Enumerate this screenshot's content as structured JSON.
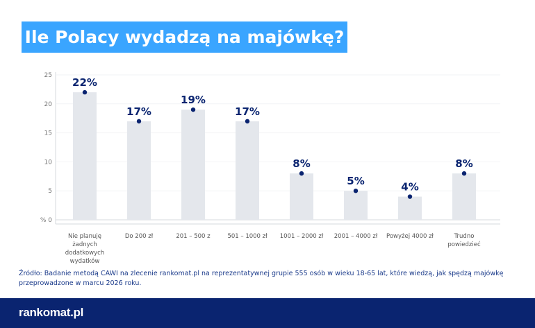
{
  "title": "Ile Polacy wydadzą na majówkę?",
  "chart_data": {
    "type": "bar",
    "title": "Ile Polacy wydadzą na majówkę?",
    "categories": [
      "Nie planuję żadnych dodatkowych wydatków",
      "Do 200 zł",
      "201 – 500 z",
      "501 – 1000 zł",
      "1001 – 2000 zł",
      "2001 – 4000 zł",
      "Powyżej 4000 zł",
      "Trudno powiedzieć"
    ],
    "category_lines": [
      [
        "Nie planuję",
        "żadnych",
        "dodatkowych",
        "wydatków"
      ],
      [
        "Do 200 zł"
      ],
      [
        "201 – 500 z"
      ],
      [
        "501 – 1000 zł"
      ],
      [
        "1001 – 2000 zł"
      ],
      [
        "2001 – 4000 zł"
      ],
      [
        "Powyżej 4000 zł"
      ],
      [
        "Trudno",
        "powiedzieć"
      ]
    ],
    "values": [
      22,
      17,
      19,
      17,
      8,
      5,
      4,
      8
    ],
    "data_labels": [
      "22%",
      "17%",
      "19%",
      "17%",
      "8%",
      "5%",
      "4%",
      "8%"
    ],
    "yticks": [
      "% 0",
      "5",
      "10",
      "15",
      "20",
      "25"
    ],
    "ylim": [
      0,
      25
    ],
    "grid": true,
    "colors": {
      "bar": "#e4e7ec",
      "dot": "#0a2470",
      "label": "#0a2470"
    }
  },
  "source": "Źródło: Badanie metodą CAWI na zlecenie rankomat.pl na reprezentatywnej grupie 555 osób w wieku 18-65 lat, które wiedzą, jak spędzą majówkę przeprowadzone w marcu 2026 roku.",
  "footer": {
    "logo": "rankomat.pl"
  }
}
